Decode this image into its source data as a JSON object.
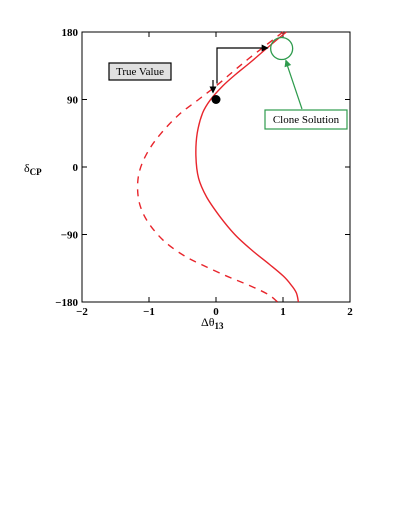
{
  "chart_data": {
    "type": "line",
    "title": "",
    "xlabel": "Δθ",
    "xlabel_sub": "13",
    "ylabel": "δ",
    "ylabel_sub": "CP",
    "xlim": [
      -2,
      2
    ],
    "ylim": [
      -180,
      180
    ],
    "xticks": [
      "−2",
      "−1",
      "0",
      "1",
      "2"
    ],
    "xtick_values": [
      -2,
      -1,
      0,
      1,
      2
    ],
    "yticks": [
      "−180",
      "−90",
      "0",
      "90",
      "180"
    ],
    "ytick_values": [
      -180,
      -90,
      0,
      90,
      180
    ],
    "grid": false,
    "series": [
      {
        "style": "solid",
        "color": "#e8252c",
        "x": [
          1.05,
          0.78,
          0.52,
          0.3,
          0.1,
          -0.08,
          -0.2,
          -0.28,
          -0.3,
          -0.26,
          -0.14,
          0.05,
          0.28,
          0.55,
          0.8,
          1.0,
          1.12,
          1.2,
          1.23
        ],
        "y": [
          180,
          160,
          140,
          124,
          108,
          90,
          72,
          45,
          15,
          -15,
          -40,
          -65,
          -90,
          -112,
          -130,
          -145,
          -157,
          -168,
          -180
        ]
      },
      {
        "style": "dashed",
        "color": "#e8252c",
        "x": [
          1.0,
          0.74,
          0.48,
          0.25,
          0.0,
          -0.26,
          -0.55,
          -0.82,
          -1.02,
          -1.14,
          -1.17,
          -1.12,
          -0.98,
          -0.76,
          -0.48,
          -0.22,
          0.15,
          0.5,
          0.78,
          0.92
        ],
        "y": [
          180,
          162,
          144,
          127,
          108,
          90,
          70,
          45,
          20,
          -5,
          -30,
          -55,
          -78,
          -100,
          -118,
          -130,
          -145,
          -158,
          -170,
          -180
        ]
      }
    ],
    "true_value": {
      "x": 0.0,
      "y": 90
    },
    "clone_circle": {
      "x": 0.98,
      "y": 158
    },
    "annotations": [
      {
        "text": "True Value",
        "bg": "#e0e0e0",
        "border": "#000000"
      },
      {
        "text": "Clone Solution",
        "bg": "#ffffff",
        "border": "#2e9b4d"
      }
    ]
  }
}
